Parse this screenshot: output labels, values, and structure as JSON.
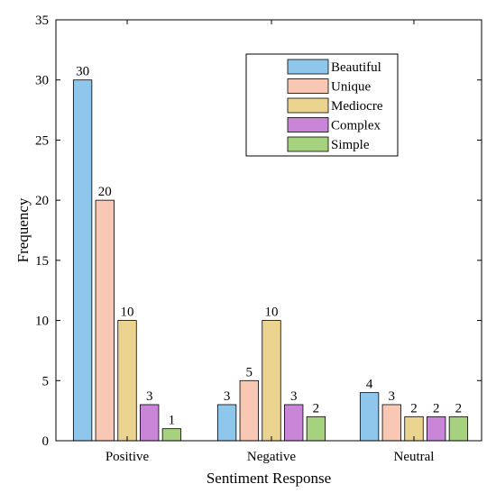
{
  "chart_data": {
    "type": "bar",
    "categories": [
      "Positive",
      "Negative",
      "Neutral"
    ],
    "series": [
      {
        "name": "Beautiful",
        "color": "#8fc6ec",
        "values": [
          30,
          3,
          4
        ]
      },
      {
        "name": "Unique",
        "color": "#f8c8b4",
        "values": [
          20,
          5,
          3
        ]
      },
      {
        "name": "Mediocre",
        "color": "#ebd490",
        "values": [
          10,
          10,
          2
        ]
      },
      {
        "name": "Complex",
        "color": "#c986d8",
        "values": [
          3,
          3,
          2
        ]
      },
      {
        "name": "Simple",
        "color": "#a6d17f",
        "values": [
          1,
          2,
          2
        ]
      }
    ],
    "xlabel": "Sentiment Response",
    "ylabel": "Frequency",
    "ylim": [
      0,
      35
    ],
    "yticks": [
      "0",
      "5",
      "10",
      "15",
      "20",
      "25",
      "30",
      "35"
    ],
    "grid": false,
    "legend_position": "top-right",
    "data_labels": [
      [
        "30",
        "3",
        "4"
      ],
      [
        "20",
        "5",
        "3"
      ],
      [
        "10",
        "10",
        "2"
      ],
      [
        "3",
        "3",
        "2"
      ],
      [
        "1",
        "2",
        "2"
      ]
    ]
  }
}
